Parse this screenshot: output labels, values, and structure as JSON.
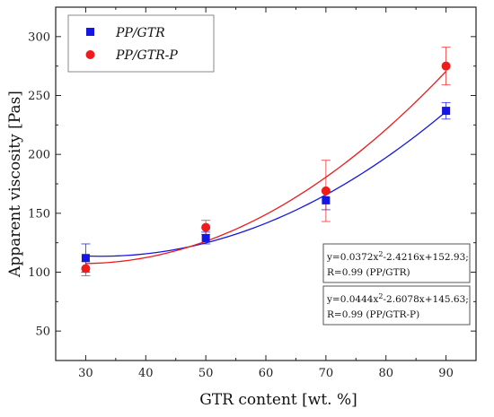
{
  "chart_data": {
    "type": "scatter",
    "xlabel": "GTR content [wt. %]",
    "ylabel": "Apparent viscosity [Pas]",
    "xlim": [
      25,
      95
    ],
    "ylim": [
      25,
      325
    ],
    "x_ticks": [
      30,
      40,
      50,
      60,
      70,
      80,
      90
    ],
    "y_ticks": [
      50,
      100,
      150,
      200,
      250,
      300
    ],
    "grid": false,
    "legend_position": "top-left",
    "series": [
      {
        "name": "PP/GTR",
        "marker": "square",
        "color": "#1515e6",
        "x": [
          30,
          50,
          70,
          90
        ],
        "y": [
          112,
          129,
          161,
          237
        ],
        "error": [
          12,
          5,
          8,
          7
        ],
        "fit_coefficients": [
          0.0372,
          -2.4216,
          152.93
        ]
      },
      {
        "name": "PP/GTR-P",
        "marker": "circle",
        "color": "#ee1c1c",
        "x": [
          30,
          50,
          70,
          90
        ],
        "y": [
          103,
          138,
          169,
          275
        ],
        "error": [
          6,
          6,
          26,
          16
        ],
        "fit_coefficients": [
          0.0444,
          -2.6078,
          145.63
        ]
      }
    ],
    "annotations": [
      {
        "eq_prefix": "y=0.0372x",
        "eq_sup": "2",
        "eq_suffix": "-2.4216x+152.93;",
        "r_line": "R=0.99 (PP/GTR)"
      },
      {
        "eq_prefix": "y=0.0444x",
        "eq_sup": "2",
        "eq_suffix": "-2.6078x+145.63;",
        "r_line": "R=0.99 (PP/GTR-P)"
      }
    ]
  }
}
